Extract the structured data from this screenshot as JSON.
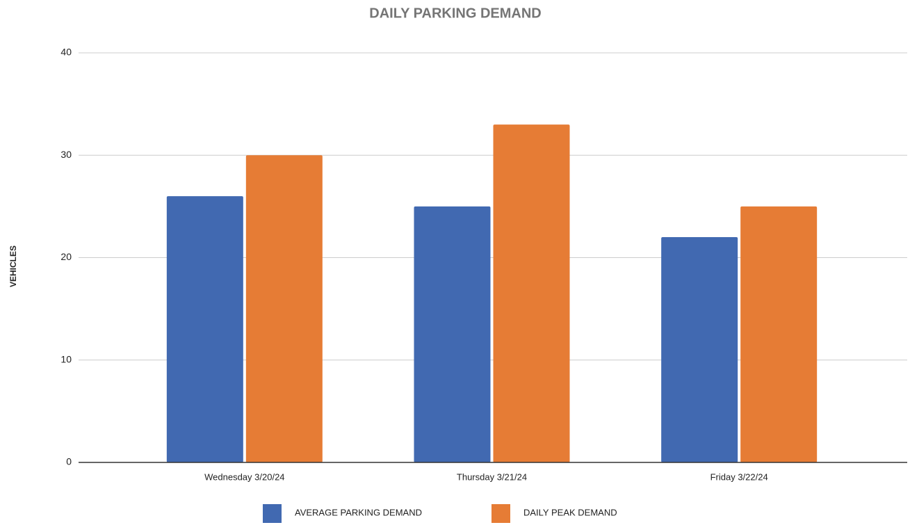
{
  "chart_data": {
    "type": "bar",
    "title": "DAILY PARKING DEMAND",
    "y_label": "VEHICLES",
    "categories": [
      "Wednesday 3/20/24",
      "Thursday 3/21/24",
      "Friday 3/22/24"
    ],
    "series": [
      {
        "name": "AVERAGE PARKING DEMAND",
        "color": "#4169b1",
        "values": [
          26,
          25,
          22
        ]
      },
      {
        "name": "DAILY PEAK DEMAND",
        "color": "#e67c35",
        "values": [
          30,
          33,
          25
        ]
      }
    ],
    "ylim": [
      0,
      40
    ],
    "yticks": [
      0,
      10,
      20,
      30,
      40
    ],
    "grid": true,
    "legend": "bottom"
  }
}
